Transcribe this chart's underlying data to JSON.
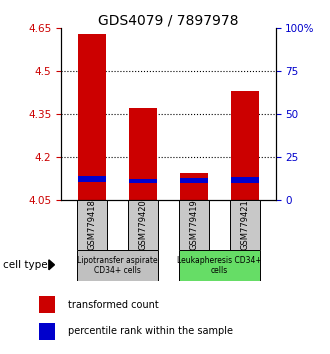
{
  "title": "GDS4079 / 7897978",
  "samples": [
    "GSM779418",
    "GSM779420",
    "GSM779419",
    "GSM779421"
  ],
  "baseline": 4.05,
  "red_tops": [
    4.63,
    4.37,
    4.145,
    4.43
  ],
  "blue_tops": [
    4.135,
    4.125,
    4.128,
    4.132
  ],
  "blue_bottoms": [
    4.113,
    4.108,
    4.108,
    4.11
  ],
  "ylim_min": 4.05,
  "ylim_max": 4.65,
  "yticks_left": [
    4.05,
    4.2,
    4.35,
    4.5,
    4.65
  ],
  "yticks_right_vals": [
    0,
    25,
    50,
    75,
    100
  ],
  "yticks_right_labels": [
    "0",
    "25",
    "50",
    "75",
    "100%"
  ],
  "cell_type_groups": [
    {
      "label": "Lipotransfer aspirate\nCD34+ cells",
      "indices": [
        0,
        1
      ],
      "color": "#c0c0c0"
    },
    {
      "label": "Leukapheresis CD34+\ncells",
      "indices": [
        2,
        3
      ],
      "color": "#66dd66"
    }
  ],
  "legend_red": "transformed count",
  "legend_blue": "percentile rank within the sample",
  "bar_width": 0.55,
  "cell_type_label": "cell type",
  "title_fontsize": 10,
  "tick_fontsize": 7.5,
  "red_color": "#cc0000",
  "blue_color": "#0000cc",
  "left_tick_color": "#cc0000",
  "right_tick_color": "#0000cc"
}
